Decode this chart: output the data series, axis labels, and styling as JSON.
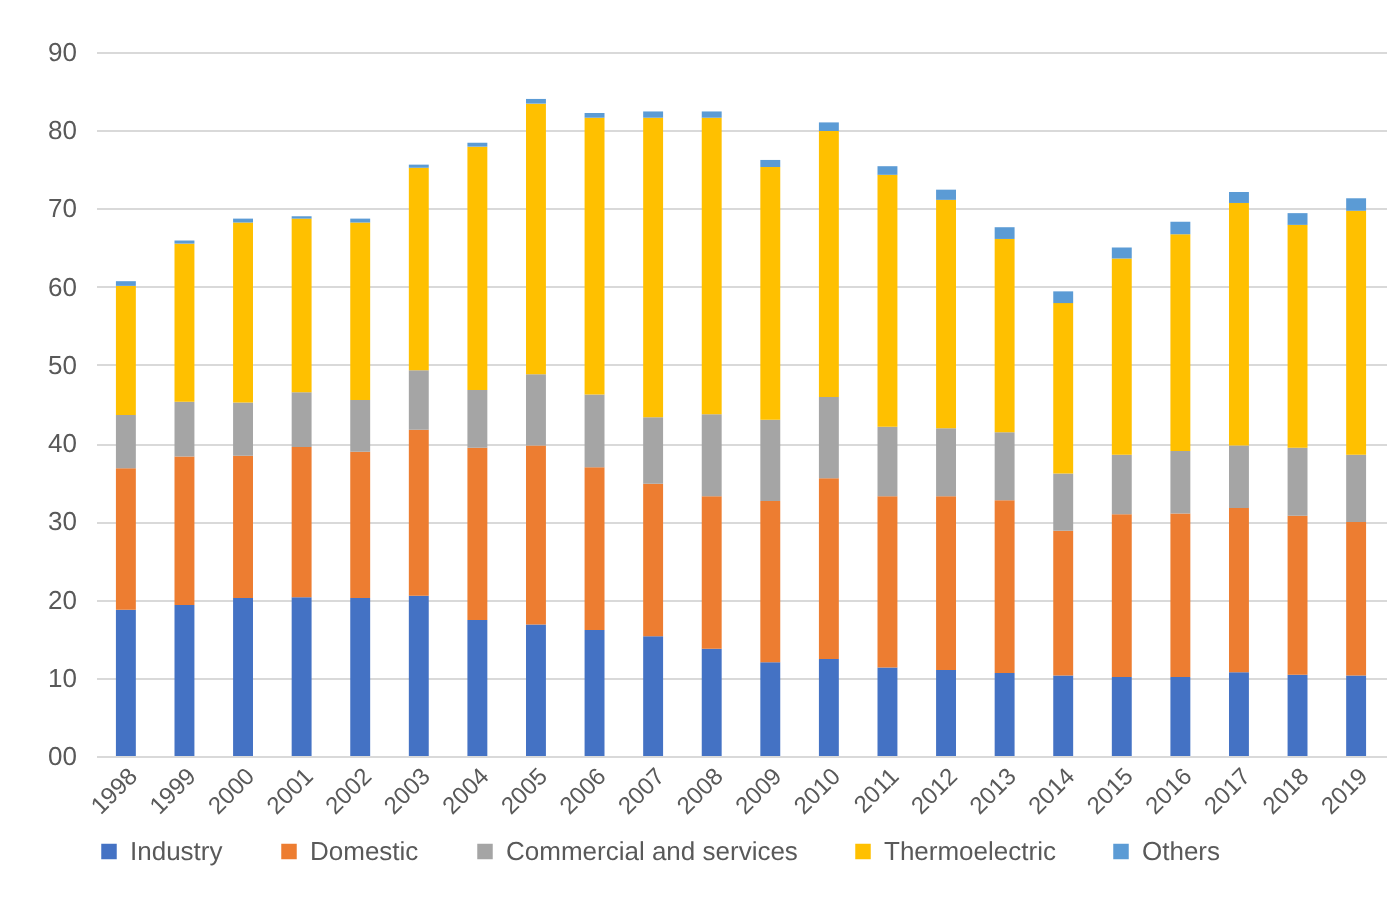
{
  "chart_data": {
    "type": "bar",
    "stacked": true,
    "categories": [
      "1998",
      "1999",
      "2000",
      "2001",
      "2002",
      "2003",
      "2004",
      "2005",
      "2006",
      "2007",
      "2008",
      "2009",
      "2010",
      "2011",
      "2012",
      "2013",
      "2014",
      "2015",
      "2016",
      "2017",
      "2018",
      "2019"
    ],
    "series": [
      {
        "name": "Industry",
        "color": "#4472c4",
        "values": [
          18.7,
          19.3,
          20.2,
          20.3,
          20.2,
          20.5,
          17.4,
          16.8,
          16.1,
          15.3,
          13.7,
          12.0,
          12.4,
          11.3,
          11.0,
          10.6,
          10.3,
          10.1,
          10.1,
          10.7,
          10.4,
          10.3
        ]
      },
      {
        "name": "Domestic",
        "color": "#ed7d31",
        "values": [
          18.1,
          19.0,
          18.2,
          19.2,
          18.7,
          21.2,
          22.0,
          22.9,
          20.8,
          19.5,
          19.5,
          20.6,
          23.1,
          21.9,
          22.2,
          22.1,
          18.5,
          20.8,
          20.9,
          21.0,
          20.3,
          19.6
        ]
      },
      {
        "name": "Commercial and services",
        "color": "#a5a5a5",
        "values": [
          6.8,
          7.0,
          6.8,
          7.0,
          6.6,
          7.6,
          7.4,
          9.1,
          9.3,
          8.5,
          10.5,
          10.4,
          10.4,
          8.9,
          8.7,
          8.7,
          7.3,
          7.6,
          8.0,
          8.0,
          8.7,
          8.6
        ]
      },
      {
        "name": "Thermoelectric",
        "color": "#ffc000",
        "values": [
          16.5,
          20.2,
          23.0,
          22.2,
          22.7,
          25.9,
          31.1,
          34.6,
          35.4,
          38.3,
          37.9,
          32.3,
          34.0,
          32.2,
          29.2,
          24.7,
          21.8,
          25.1,
          27.7,
          31.0,
          28.5,
          31.2
        ]
      },
      {
        "name": "Others",
        "color": "#5b9bd5",
        "values": [
          0.6,
          0.4,
          0.5,
          0.3,
          0.5,
          0.4,
          0.5,
          0.6,
          0.6,
          0.8,
          0.8,
          0.9,
          1.1,
          1.1,
          1.3,
          1.5,
          1.5,
          1.4,
          1.6,
          1.4,
          1.5,
          1.6
        ]
      }
    ],
    "ylim": [
      0,
      90
    ],
    "yticks": [
      {
        "value": 0,
        "label": "00"
      },
      10,
      20,
      30,
      40,
      50,
      60,
      70,
      80,
      90
    ],
    "grid": "y",
    "legend": "bottom"
  }
}
